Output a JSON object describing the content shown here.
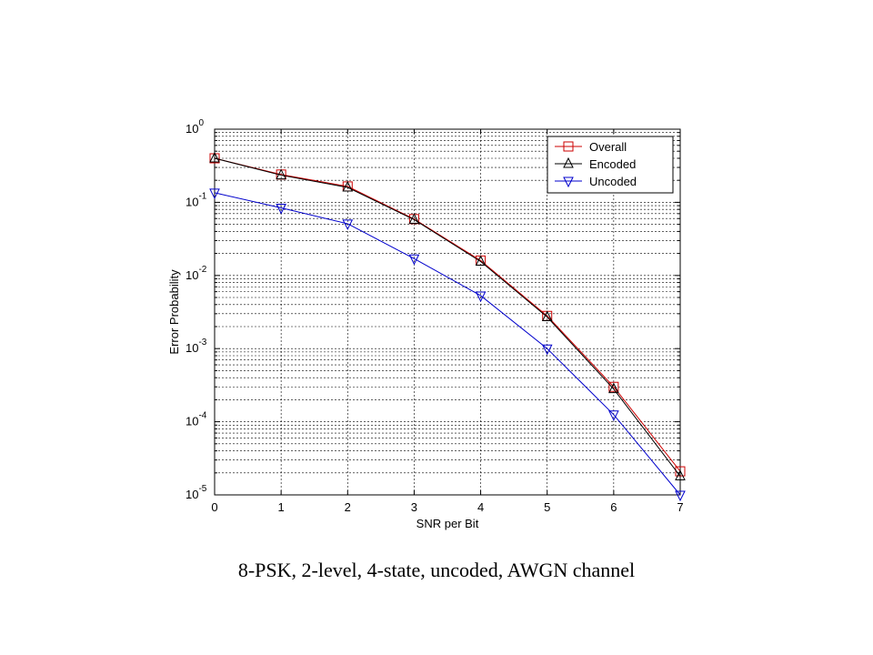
{
  "caption": "8-PSK, 2-level, 4-state, uncoded, AWGN channel",
  "chart_data": {
    "type": "line",
    "title": "",
    "xlabel": "SNR per Bit",
    "ylabel": "Error Probability",
    "xlim": [
      0,
      7
    ],
    "ylim": [
      1e-05,
      1
    ],
    "yscale": "log",
    "grid": true,
    "legend_position": "top-right",
    "x_ticks": [
      "0",
      "1",
      "2",
      "3",
      "4",
      "5",
      "6",
      "7"
    ],
    "y_ticks": [
      {
        "base": "10",
        "exp": "0"
      },
      {
        "base": "10",
        "exp": "-1"
      },
      {
        "base": "10",
        "exp": "-2"
      },
      {
        "base": "10",
        "exp": "-3"
      },
      {
        "base": "10",
        "exp": "-4"
      },
      {
        "base": "10",
        "exp": "-5"
      }
    ],
    "x": [
      0,
      1,
      2,
      3,
      4,
      5,
      6,
      7
    ],
    "series": [
      {
        "name": "Overall",
        "color": "#cc0000",
        "marker": "square",
        "values": [
          0.4,
          0.24,
          0.165,
          0.059,
          0.016,
          0.0028,
          0.0003,
          2.1e-05
        ]
      },
      {
        "name": "Encoded",
        "color": "#000000",
        "marker": "triangle-up",
        "values": [
          0.4,
          0.235,
          0.16,
          0.058,
          0.0155,
          0.0027,
          0.00028,
          1.8e-05
        ]
      },
      {
        "name": "Uncoded",
        "color": "#0000cc",
        "marker": "triangle-down",
        "values": [
          0.135,
          0.084,
          0.051,
          0.017,
          0.0053,
          0.001,
          0.000125,
          1e-05
        ]
      }
    ]
  }
}
